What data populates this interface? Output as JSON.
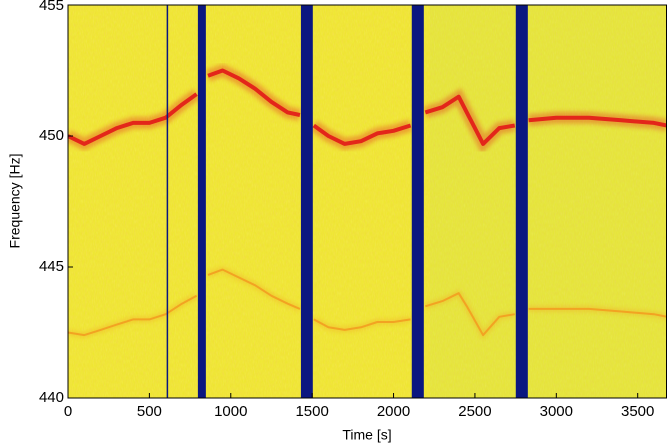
{
  "chart_data": {
    "type": "spectrogram",
    "x_label": "Time [s]",
    "y_label": "Frequency [Hz]",
    "xlim": [
      0,
      3680
    ],
    "ylim": [
      440,
      455
    ],
    "xticks": [
      0,
      500,
      1000,
      1500,
      2000,
      2500,
      3000,
      3500
    ],
    "yticks": [
      440,
      445,
      450,
      455
    ],
    "background_color": "#eee630",
    "gap_color": "#0b1780",
    "gaps": [
      [
        606,
        612
      ],
      [
        798,
        847
      ],
      [
        1431,
        1504
      ],
      [
        2112,
        2186
      ],
      [
        2751,
        2825
      ]
    ],
    "x": [
      0,
      100,
      200,
      300,
      400,
      500,
      600,
      700,
      790,
      820,
      860,
      950,
      1050,
      1150,
      1250,
      1350,
      1425,
      1470,
      1510,
      1600,
      1700,
      1800,
      1900,
      2000,
      2105,
      2150,
      2195,
      2300,
      2400,
      2450,
      2550,
      2650,
      2745,
      2790,
      2830,
      3000,
      3200,
      3400,
      3600,
      3680
    ],
    "series": [
      {
        "color": "#e3261a",
        "values": [
          450.0,
          449.7,
          450.0,
          450.3,
          450.5,
          450.5,
          450.7,
          451.2,
          451.6,
          null,
          452.3,
          452.5,
          452.2,
          451.8,
          451.3,
          450.9,
          450.8,
          null,
          450.4,
          450.0,
          449.7,
          449.8,
          450.1,
          450.2,
          450.4,
          null,
          450.9,
          451.1,
          451.5,
          450.9,
          449.7,
          450.3,
          450.4,
          null,
          450.6,
          450.7,
          450.7,
          450.6,
          450.5,
          450.4
        ]
      },
      {
        "color": "#f2a322",
        "values": [
          442.5,
          442.4,
          442.6,
          442.8,
          443.0,
          443.0,
          443.2,
          443.6,
          443.9,
          null,
          444.7,
          444.9,
          444.6,
          444.3,
          443.9,
          443.6,
          443.4,
          null,
          443.0,
          442.7,
          442.6,
          442.7,
          442.9,
          442.9,
          443.0,
          null,
          443.5,
          443.7,
          444.0,
          443.5,
          442.4,
          443.1,
          443.2,
          null,
          443.4,
          443.4,
          443.4,
          443.3,
          443.2,
          443.1
        ]
      }
    ]
  }
}
